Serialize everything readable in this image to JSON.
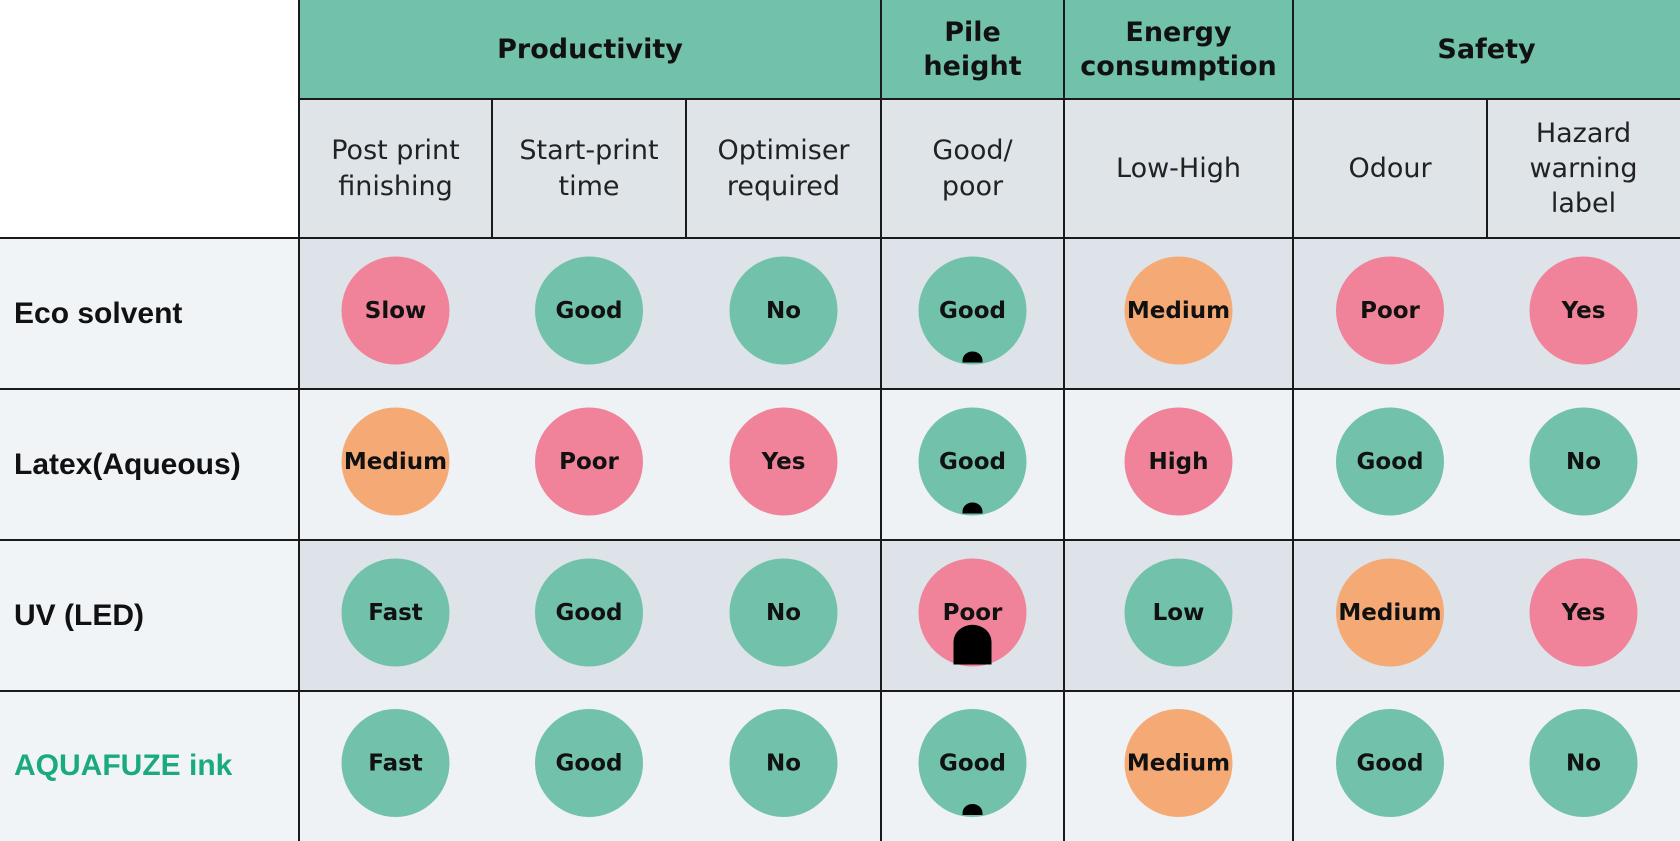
{
  "header_groups": [
    "Productivity",
    "Pile height",
    "Energy consumption",
    "Safety"
  ],
  "subheaders": [
    "Post print finishing",
    "Start-print time",
    "Optimiser required",
    "Good/ poor",
    "Low-High",
    "Odour",
    "Hazard warning label"
  ],
  "rows": [
    {
      "label": "Eco solvent",
      "cells": [
        {
          "text": "Slow",
          "color": "#f08399"
        },
        {
          "text": "Good",
          "color": "#72c1aa"
        },
        {
          "text": "No",
          "color": "#72c1aa"
        },
        {
          "text": "Good",
          "color": "#72c1aa"
        },
        {
          "text": "Medium",
          "color": "#f5aa76"
        },
        {
          "text": "Poor",
          "color": "#f08399"
        },
        {
          "text": "Yes",
          "color": "#f08399"
        }
      ]
    },
    {
      "label": "Latex(Aqueous)",
      "cells": [
        {
          "text": "Medium",
          "color": "#f5aa76"
        },
        {
          "text": "Poor",
          "color": "#f08399"
        },
        {
          "text": "Yes",
          "color": "#f08399"
        },
        {
          "text": "Good",
          "color": "#72c1aa"
        },
        {
          "text": "High",
          "color": "#f08399"
        },
        {
          "text": "Good",
          "color": "#72c1aa"
        },
        {
          "text": "No",
          "color": "#72c1aa"
        }
      ]
    },
    {
      "label": "UV (LED)",
      "cells": [
        {
          "text": "Fast",
          "color": "#72c1aa"
        },
        {
          "text": "Good",
          "color": "#72c1aa"
        },
        {
          "text": "No",
          "color": "#72c1aa"
        },
        {
          "text": "Poor",
          "color": "#f08399"
        },
        {
          "text": "Low",
          "color": "#72c1aa"
        },
        {
          "text": "Medium",
          "color": "#f5aa76"
        },
        {
          "text": "Yes",
          "color": "#f08399"
        }
      ]
    },
    {
      "label": "AQUAFUZE ink",
      "cells": [
        {
          "text": "Fast",
          "color": "#72c1aa"
        },
        {
          "text": "Good",
          "color": "#72c1aa"
        },
        {
          "text": "No",
          "color": "#72c1aa"
        },
        {
          "text": "Good",
          "color": "#72c1aa"
        },
        {
          "text": "Medium",
          "color": "#f5aa76"
        },
        {
          "text": "Good",
          "color": "#72c1aa"
        },
        {
          "text": "No",
          "color": "#72c1aa"
        }
      ]
    }
  ]
}
